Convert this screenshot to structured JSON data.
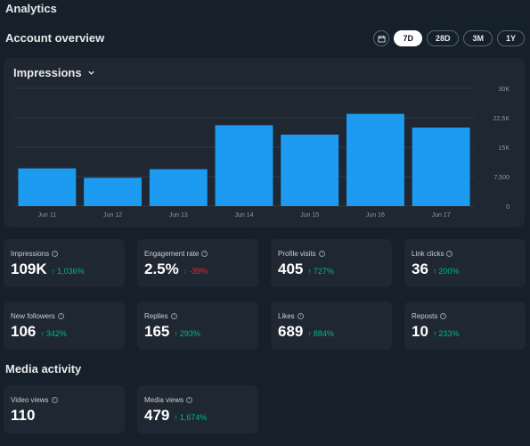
{
  "page": {
    "title": "Analytics"
  },
  "overview": {
    "title": "Account overview",
    "ranges": [
      {
        "label": "7D",
        "active": true
      },
      {
        "label": "28D",
        "active": false
      },
      {
        "label": "3M",
        "active": false
      },
      {
        "label": "1Y",
        "active": false
      }
    ],
    "calendar_icon": "calendar-icon"
  },
  "chart": {
    "header_label": "Impressions",
    "dropdown_icon": "chevron-down-icon",
    "bar_color": "#1d9bf0"
  },
  "chart_data": {
    "type": "bar",
    "categories": [
      "Jun 11",
      "Jun 12",
      "Jun 13",
      "Jun 14",
      "Jun 15",
      "Jun 16",
      "Jun 17"
    ],
    "values": [
      9600,
      7200,
      9400,
      20600,
      18200,
      23500,
      20000
    ],
    "ylim": [
      0,
      30000
    ],
    "yticks": [
      0,
      7500,
      15000,
      22500,
      30000
    ],
    "ytick_labels": [
      "0",
      "7,500",
      "15K",
      "22.5K",
      "30K"
    ],
    "grid": true,
    "y_axis_side": "right"
  },
  "stats": [
    {
      "label": "Impressions",
      "value": "109K",
      "delta": "1,036%",
      "direction": "up"
    },
    {
      "label": "Engagement rate",
      "value": "2.5%",
      "delta": "-39%",
      "direction": "down"
    },
    {
      "label": "Profile visits",
      "value": "405",
      "delta": "727%",
      "direction": "up"
    },
    {
      "label": "Link clicks",
      "value": "36",
      "delta": "200%",
      "direction": "up"
    },
    {
      "label": "New followers",
      "value": "106",
      "delta": "342%",
      "direction": "up"
    },
    {
      "label": "Replies",
      "value": "165",
      "delta": "293%",
      "direction": "up"
    },
    {
      "label": "Likes",
      "value": "689",
      "delta": "884%",
      "direction": "up"
    },
    {
      "label": "Reposts",
      "value": "10",
      "delta": "233%",
      "direction": "up"
    }
  ],
  "media": {
    "title": "Media activity",
    "stats": [
      {
        "label": "Video views",
        "value": "110",
        "delta": "",
        "direction": "none"
      },
      {
        "label": "Media views",
        "value": "479",
        "delta": "1,674%",
        "direction": "up"
      }
    ]
  },
  "colors": {
    "background": "#15202b",
    "card": "#1e2732",
    "up": "#00ba7c",
    "down": "#f4212e",
    "accent": "#1d9bf0"
  }
}
